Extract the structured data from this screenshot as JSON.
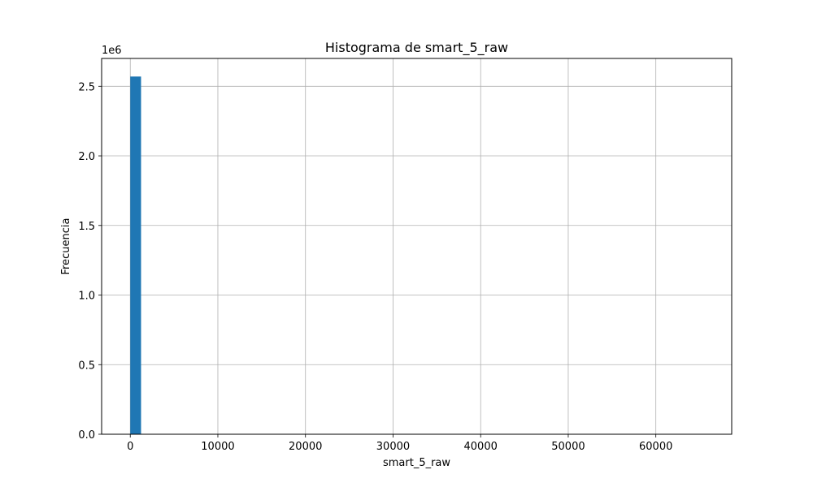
{
  "chart_data": {
    "type": "bar",
    "title": "Histograma de smart_5_raw",
    "xlabel": "smart_5_raw",
    "ylabel": "Frecuencia",
    "y_offset_label": "1e6",
    "xlim": [
      -3270,
      68660
    ],
    "ylim": [
      0,
      2.7
    ],
    "y_scale_note": "values in units of 1e6",
    "x_ticks": [
      0,
      10000,
      20000,
      30000,
      40000,
      50000,
      60000
    ],
    "y_ticks": [
      0.0,
      0.5,
      1.0,
      1.5,
      2.0,
      2.5
    ],
    "x_tick_labels": [
      "0",
      "10000",
      "20000",
      "30000",
      "40000",
      "50000",
      "60000"
    ],
    "y_tick_labels": [
      "0.0",
      "0.5",
      "1.0",
      "1.5",
      "2.0",
      "2.5"
    ],
    "grid": true,
    "bar_color": "#1f77b4",
    "series": [
      {
        "bins": [
          {
            "x0": 0,
            "x1": 1230,
            "value": 2.57
          }
        ]
      }
    ]
  }
}
